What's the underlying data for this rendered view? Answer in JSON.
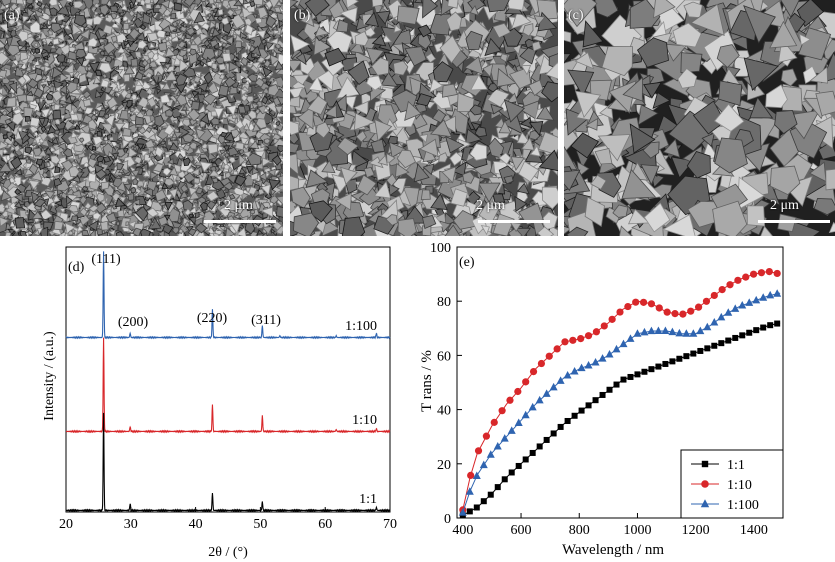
{
  "sem_panels": [
    {
      "label": "(a)",
      "scale_bar": "2 μm"
    },
    {
      "label": "(b)",
      "scale_bar": "2 μm"
    },
    {
      "label": "(c)",
      "scale_bar": "2 μm"
    }
  ],
  "colors": {
    "black": "#000000",
    "red": "#d8272a",
    "blue": "#2f64b0"
  },
  "chart_data": [
    {
      "type": "line",
      "panel_label": "(d)",
      "xlabel": "2θ / (°)",
      "ylabel": "Intensity / (a.u.)",
      "xlim": [
        20,
        70
      ],
      "x_ticks": [
        20,
        30,
        40,
        50,
        60,
        70
      ],
      "peak_labels": [
        "(111)",
        "(200)",
        "(220)",
        "(311)"
      ],
      "series": [
        {
          "name": "1:100",
          "color": "#2f64b0",
          "peaks": [
            [
              25.8,
              1.0
            ],
            [
              29.9,
              0.05
            ],
            [
              42.6,
              0.33
            ],
            [
              50.3,
              0.14
            ],
            [
              53.0,
              0.02
            ],
            [
              61.7,
              0.02
            ],
            [
              67.9,
              0.05
            ]
          ]
        },
        {
          "name": "1:10",
          "color": "#d8272a",
          "peaks": [
            [
              25.8,
              1.0
            ],
            [
              29.9,
              0.05
            ],
            [
              42.6,
              0.29
            ],
            [
              50.3,
              0.17
            ],
            [
              61.7,
              0.02
            ],
            [
              67.9,
              0.03
            ]
          ]
        },
        {
          "name": "1:1",
          "color": "#000000",
          "peaks": [
            [
              25.8,
              1.0
            ],
            [
              29.9,
              0.07
            ],
            [
              42.6,
              0.18
            ],
            [
              50.3,
              0.09
            ],
            [
              67.9,
              0.03
            ]
          ]
        }
      ]
    },
    {
      "type": "line",
      "panel_label": "(e)",
      "xlabel": "Wavelength / nm",
      "ylabel": "T rans / %",
      "xlim": [
        380,
        1500
      ],
      "ylim": [
        0,
        100
      ],
      "x_ticks": [
        400,
        600,
        800,
        1000,
        1200,
        1400
      ],
      "y_ticks": [
        0,
        20,
        40,
        60,
        80,
        100
      ],
      "legend_position": "bottom-right",
      "series": [
        {
          "name": "1:1",
          "color": "#000000",
          "marker": "square",
          "x": [
            400,
            450,
            500,
            550,
            600,
            650,
            700,
            750,
            800,
            850,
            900,
            950,
            1000,
            1050,
            1100,
            1150,
            1200,
            1250,
            1300,
            1350,
            1400,
            1450,
            1490
          ],
          "y": [
            1,
            4,
            9,
            15,
            20,
            25,
            30,
            35,
            39,
            43,
            47,
            51,
            53,
            55,
            57,
            59,
            61,
            63,
            65,
            67,
            69,
            71,
            72
          ]
        },
        {
          "name": "1:10",
          "color": "#d8272a",
          "marker": "circle",
          "x": [
            400,
            425,
            450,
            500,
            550,
            600,
            650,
            700,
            750,
            800,
            850,
            900,
            950,
            1000,
            1050,
            1100,
            1150,
            1200,
            1250,
            1300,
            1350,
            1400,
            1450,
            1490
          ],
          "y": [
            3,
            15,
            24,
            34,
            42,
            48,
            55,
            60,
            65,
            66,
            68,
            72,
            77,
            80,
            79,
            76,
            75,
            77,
            81,
            85,
            88,
            90,
            91,
            90
          ]
        },
        {
          "name": "1:100",
          "color": "#2f64b0",
          "marker": "triangle",
          "x": [
            400,
            425,
            450,
            500,
            550,
            600,
            650,
            700,
            750,
            800,
            850,
            900,
            950,
            1000,
            1050,
            1100,
            1150,
            1200,
            1250,
            1300,
            1350,
            1400,
            1450,
            1490
          ],
          "y": [
            2,
            10,
            16,
            24,
            30,
            36,
            42,
            47,
            52,
            55,
            57,
            60,
            64,
            68,
            69,
            69,
            68,
            68,
            71,
            75,
            78,
            80,
            82,
            83
          ]
        }
      ]
    }
  ]
}
